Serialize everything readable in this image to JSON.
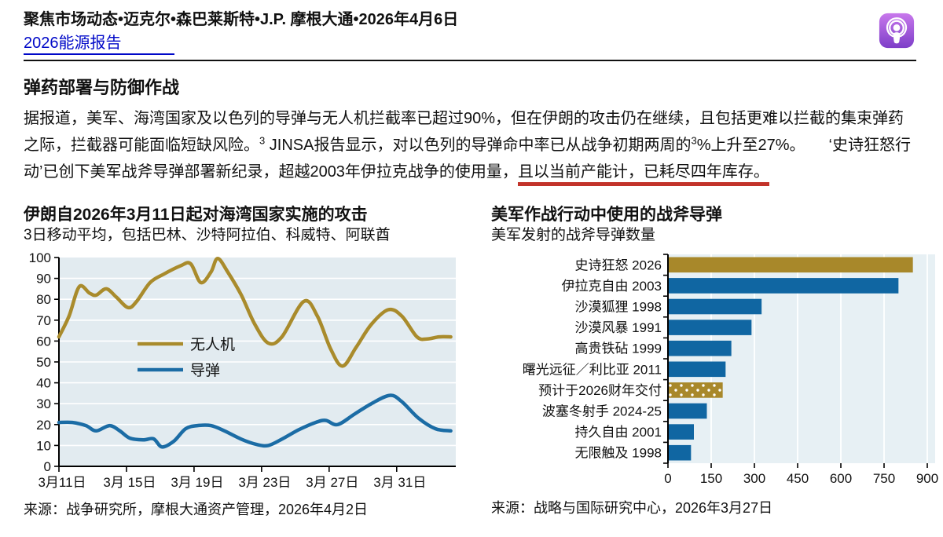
{
  "header": {
    "byline": "聚焦市场动态•迈克尔•森巴莱斯特•J.P. 摩根大通•2026年4月6日",
    "link_label": "2026能源报告",
    "podcast_icon": "apple-podcasts-icon",
    "podcast_color": "#9a4fd6"
  },
  "article": {
    "heading": "弹药部署与防御作战",
    "paragraph_segments": [
      {
        "text": "据报道，美军、海湾国家及以色列的导弹与无人机拦截率已超过90%，但在伊朗的攻击仍在继续，且包括更难以拦截的集束弹药之际，拦截器可能面临短缺风险。"
      },
      {
        "text": "3",
        "sup": true
      },
      {
        "text": " JINSA报告显示，对以色列的导弹命中率已从战争初期两周的"
      },
      {
        "text": "3",
        "sup": true
      },
      {
        "text": "%上升至27%。　　‘史诗狂怒行动’已创下美军战斧导弹部署新纪录，超越2003年伊拉克战争的使用量，"
      },
      {
        "text": "且以当前产能计，已耗尽四年库存。",
        "underline": "red"
      }
    ],
    "underline_color": "#c2332a"
  },
  "chart_data": [
    {
      "type": "line",
      "title": "伊朗自2026年3月11日起对海湾国家实施的攻击",
      "subtitle": "3日移动平均，包括巴林、沙特阿拉伯、科威特、阿联酋",
      "source": "来源：战争研究所，摩根大通资产管理，2026年4月2日",
      "x_unit": "天（0 = 2026年3月11日）",
      "xlim": [
        0,
        23.5
      ],
      "ylim": [
        0,
        100
      ],
      "y_tick_step": 10,
      "grid": "horizontal-white",
      "plot_bg": "#e2ebf0",
      "legend_position": "inside-center-left",
      "x_ticks": [
        {
          "pos": 0,
          "label": "3月11日"
        },
        {
          "pos": 4,
          "label": "3月 15日"
        },
        {
          "pos": 8,
          "label": "3月 19日"
        },
        {
          "pos": 12,
          "label": "3月 23日"
        },
        {
          "pos": 16,
          "label": "3月 27日"
        },
        {
          "pos": 20,
          "label": "3月 31日"
        }
      ],
      "series": [
        {
          "name": "无人机",
          "color": "#a98b2c",
          "points": [
            [
              0,
              62
            ],
            [
              0.6,
              72
            ],
            [
              1.2,
              86
            ],
            [
              1.8,
              83
            ],
            [
              2.2,
              82
            ],
            [
              2.8,
              85
            ],
            [
              3.4,
              81
            ],
            [
              4.1,
              76
            ],
            [
              4.6,
              79
            ],
            [
              5.4,
              88
            ],
            [
              6.2,
              92
            ],
            [
              7.2,
              96
            ],
            [
              7.8,
              97
            ],
            [
              8.4,
              88
            ],
            [
              9,
              93
            ],
            [
              9.4,
              99.5
            ],
            [
              10,
              93
            ],
            [
              10.8,
              82
            ],
            [
              11.6,
              68
            ],
            [
              12.4,
              59
            ],
            [
              13.2,
              62
            ],
            [
              14.5,
              79
            ],
            [
              15.3,
              72
            ],
            [
              16.1,
              56
            ],
            [
              16.8,
              48
            ],
            [
              17.6,
              57
            ],
            [
              18.5,
              68
            ],
            [
              19.5,
              75
            ],
            [
              20.3,
              72
            ],
            [
              21.2,
              62
            ],
            [
              21.8,
              61
            ],
            [
              22.5,
              62
            ],
            [
              23.2,
              62
            ]
          ]
        },
        {
          "name": "导弹",
          "color": "#1b6ca5",
          "points": [
            [
              0,
              21
            ],
            [
              0.8,
              21
            ],
            [
              1.6,
              19.5
            ],
            [
              2.2,
              17
            ],
            [
              3,
              19.5
            ],
            [
              3.6,
              17
            ],
            [
              4.2,
              13.5
            ],
            [
              5,
              12.7
            ],
            [
              5.6,
              13.2
            ],
            [
              6.1,
              9.3
            ],
            [
              6.8,
              12
            ],
            [
              7.5,
              18
            ],
            [
              8.2,
              19.5
            ],
            [
              9,
              19.5
            ],
            [
              9.8,
              17
            ],
            [
              10.8,
              13
            ],
            [
              11.7,
              10.5
            ],
            [
              12.4,
              10
            ],
            [
              13.2,
              13
            ],
            [
              14.2,
              17.5
            ],
            [
              15.2,
              21
            ],
            [
              15.8,
              22
            ],
            [
              16.5,
              20
            ],
            [
              17.5,
              25
            ],
            [
              18.5,
              30
            ],
            [
              19.6,
              34
            ],
            [
              20.3,
              31
            ],
            [
              21.3,
              23
            ],
            [
              22.3,
              18
            ],
            [
              23.2,
              17
            ]
          ]
        }
      ]
    },
    {
      "type": "bar",
      "orientation": "horizontal",
      "title": "美军作战行动中使用的战斧导弹",
      "subtitle": "美军发射的战斧导弹数量",
      "source": "来源：战略与国际研究中心，2026年3月27日",
      "xlim": [
        0,
        900
      ],
      "x_ticks": [
        0,
        150,
        300,
        450,
        600,
        750,
        900
      ],
      "grid": "vertical-white",
      "plot_bg": "#e7f0f4",
      "colors": {
        "gold": "#a8882a",
        "blue": "#1066a2"
      },
      "bars": [
        {
          "label": "史诗狂怒 2026",
          "value": 850,
          "style": "gold"
        },
        {
          "label": "伊拉克自由 2003",
          "value": 800,
          "style": "blue"
        },
        {
          "label": "沙漠狐狸 1998",
          "value": 325,
          "style": "blue"
        },
        {
          "label": "沙漠风暴 1991",
          "value": 290,
          "style": "blue"
        },
        {
          "label": "高贵铁砧 1999",
          "value": 220,
          "style": "blue"
        },
        {
          "label": "曙光远征／利比亚 2011",
          "value": 200,
          "style": "blue"
        },
        {
          "label": "预计于2026财年交付",
          "value": 190,
          "style": "gold-dotted"
        },
        {
          "label": "波塞冬射手 2024-25",
          "value": 135,
          "style": "blue"
        },
        {
          "label": "持久自由 2001",
          "value": 90,
          "style": "blue"
        },
        {
          "label": "无限触及 1998",
          "value": 80,
          "style": "blue"
        }
      ]
    }
  ]
}
